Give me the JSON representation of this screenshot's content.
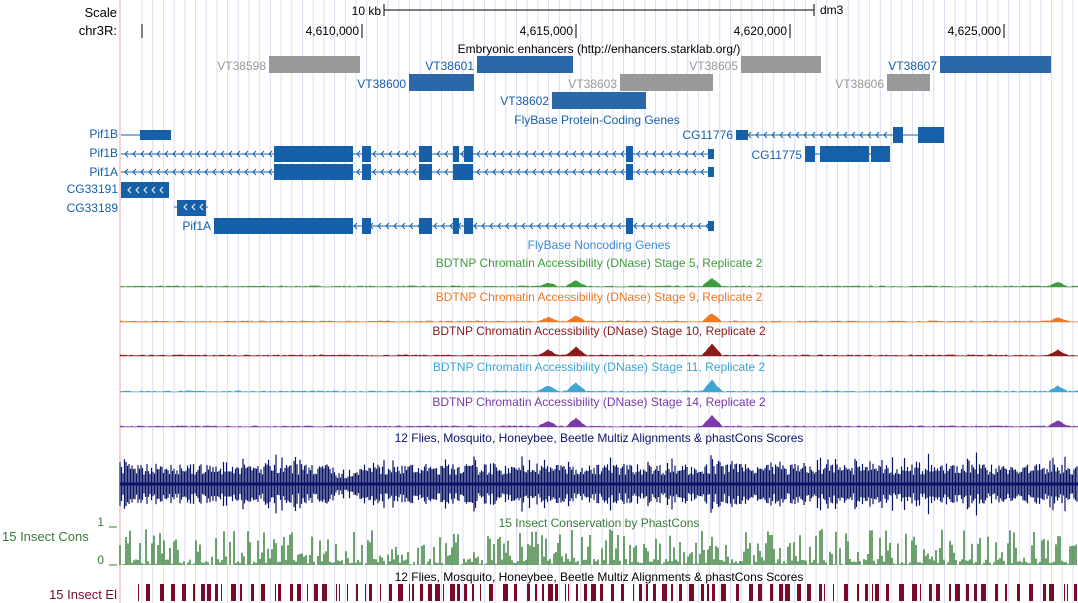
{
  "ruler": {
    "scale_label": "Scale",
    "chrom_label": "chr3R:",
    "scalebar_label": "10 kb",
    "assembly": "dm3",
    "ticks": [
      "4,610,000",
      "4,615,000",
      "4,620,000",
      "4,625,000"
    ]
  },
  "tracks": {
    "enhancers": {
      "title": "Embryonic enhancers (http://enhancers.starklab.org/)",
      "items": [
        "VT38598",
        "VT38601",
        "VT38600",
        "VT38603",
        "VT38602",
        "VT38605",
        "VT38607",
        "VT38606"
      ]
    },
    "genes": {
      "title": "FlyBase Protein-Coding Genes",
      "labels": [
        "Pif1B",
        "Pif1B",
        "Pif1A",
        "CG33191",
        "CG33189",
        "Pif1A",
        "CG11776",
        "CG11775"
      ]
    },
    "noncoding": {
      "title": "FlyBase Noncoding Genes"
    },
    "dnase": [
      {
        "title": "BDTNP Chromatin Accessibility (DNase) Stage 5, Replicate 2",
        "color": "#3d9c3d"
      },
      {
        "title": "BDTNP Chromatin Accessibility (DNase) Stage 9, Replicate 2",
        "color": "#f07820"
      },
      {
        "title": "BDTNP Chromatin Accessibility (DNase) Stage 10, Replicate 2",
        "color": "#8b1a1a"
      },
      {
        "title": "BDTNP Chromatin Accessibility (DNase) Stage 11, Replicate 2",
        "color": "#3ea6d0"
      },
      {
        "title": "BDTNP Chromatin Accessibility (DNase) Stage 14, Replicate 2",
        "color": "#7a3aa8"
      }
    ],
    "multiz": {
      "title": "12 Flies, Mosquito, Honeybee, Beetle Multiz Alignments & phastCons Scores",
      "color": "#0a1464"
    },
    "phastcons": {
      "title": "15 Insect Conservation by PhastCons",
      "side_label": "15 Insect Cons",
      "ymax": "1",
      "ymin": "0",
      "color": "#3a7a3a"
    },
    "elements": {
      "title": "12 Flies, Mosquito, Honeybee, Beetle Multiz Alignments & phastCons Scores",
      "side_label": "15 Insect El",
      "color": "#7a0a2a"
    }
  },
  "colors": {
    "gene_blue": "#1560a8",
    "enhancer_gray": "#999999",
    "grid": "#d8d8f4",
    "left_rule": "#f4a0a0"
  }
}
